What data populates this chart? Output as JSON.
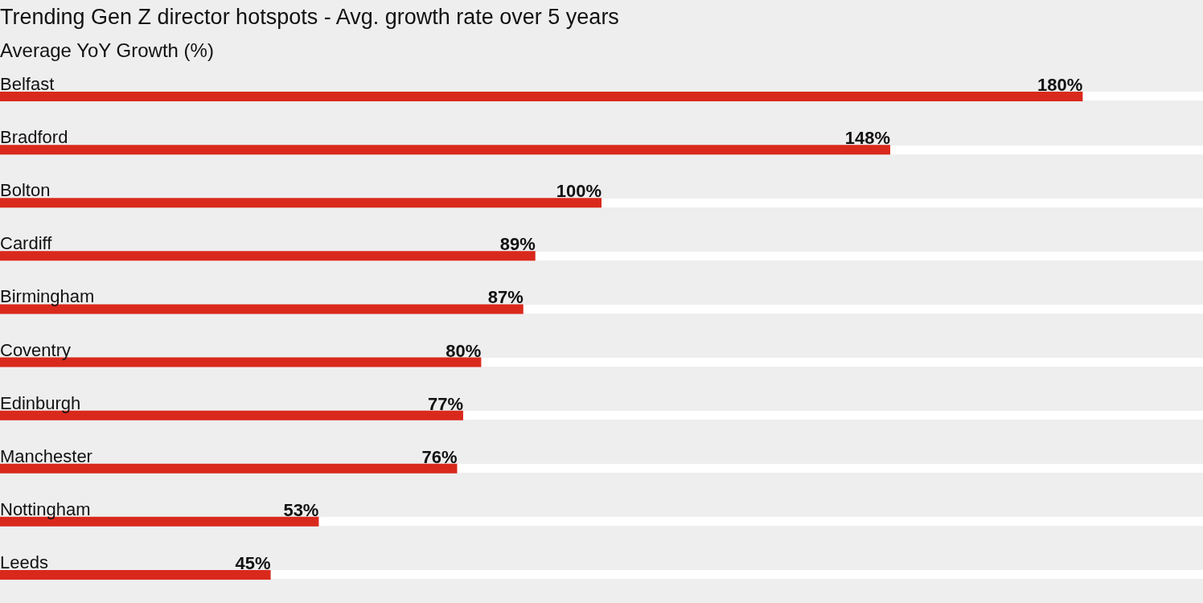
{
  "chart_data": {
    "type": "bar",
    "orientation": "horizontal",
    "title": "Trending Gen Z director hotspots - Avg. growth rate over 5 years",
    "subtitle": "Average YoY Growth (%)",
    "categories": [
      "Belfast",
      "Bradford",
      "Bolton",
      "Cardiff",
      "Birmingham",
      "Coventry",
      "Edinburgh",
      "Manchester",
      "Nottingham",
      "Leeds"
    ],
    "values": [
      180,
      148,
      100,
      89,
      87,
      80,
      77,
      76,
      53,
      45
    ],
    "value_labels": [
      "180%",
      "148%",
      "100%",
      "89%",
      "87%",
      "80%",
      "77%",
      "76%",
      "53%",
      "45%"
    ],
    "color": "#d9291c"
  }
}
